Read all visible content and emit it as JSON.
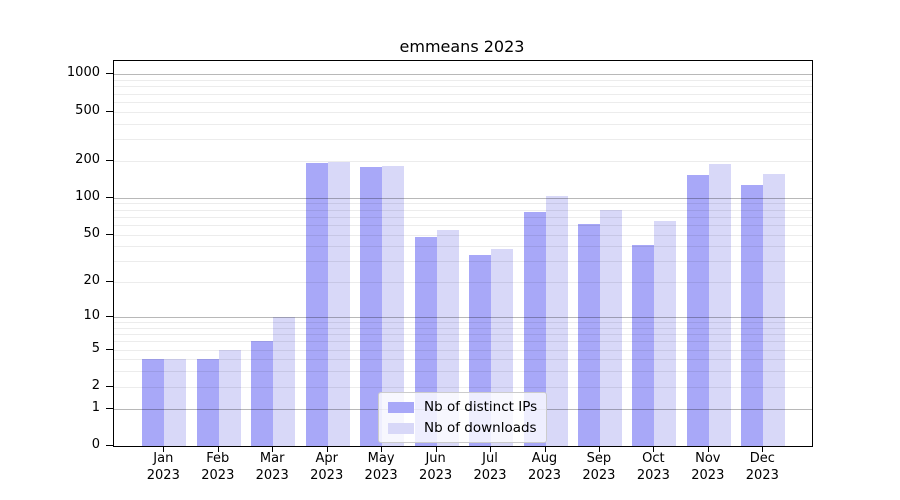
{
  "title": "emmeans 2023",
  "colors": {
    "distinct_ips": "#a8a8f8",
    "downloads": "#d8d8f8",
    "major_grid": "#b5b5b5",
    "minor_grid": "#ececec",
    "axis": "#000000"
  },
  "legend": {
    "items": [
      {
        "label": "Nb of distinct IPs",
        "color": "#a8a8f8"
      },
      {
        "label": "Nb of downloads",
        "color": "#d8d8f8"
      }
    ]
  },
  "chart_data": {
    "type": "bar",
    "title": "emmeans 2023",
    "categories": [
      "Jan 2023",
      "Feb 2023",
      "Mar 2023",
      "Apr 2023",
      "May 2023",
      "Jun 2023",
      "Jul 2023",
      "Aug 2023",
      "Sep 2023",
      "Oct 2023",
      "Nov 2023",
      "Dec 2023"
    ],
    "series": [
      {
        "name": "Nb of distinct IPs",
        "key": "ips",
        "color": "#a8a8f8",
        "values": [
          4,
          4,
          6,
          190,
          178,
          48,
          34,
          76,
          61,
          41,
          152,
          128
        ]
      },
      {
        "name": "Nb of downloads",
        "key": "downloads",
        "color": "#d8d8f8",
        "values": [
          4,
          5,
          10,
          194,
          181,
          54,
          38,
          103,
          79,
          65,
          187,
          155
        ]
      }
    ],
    "xlabel": "",
    "ylabel": "",
    "yscale": "log10(1+x)",
    "yticks": [
      0,
      1,
      2,
      5,
      10,
      20,
      50,
      100,
      200,
      500,
      1000
    ],
    "major_gridlines": [
      1,
      10,
      100,
      1000
    ],
    "minor_gridlines": [
      2,
      3,
      4,
      5,
      6,
      7,
      8,
      9,
      20,
      30,
      40,
      50,
      60,
      70,
      80,
      90,
      200,
      300,
      400,
      500,
      600,
      700,
      800,
      900
    ],
    "ylim": [
      0,
      1280
    ],
    "grid": true,
    "legend_position": "lower center"
  }
}
